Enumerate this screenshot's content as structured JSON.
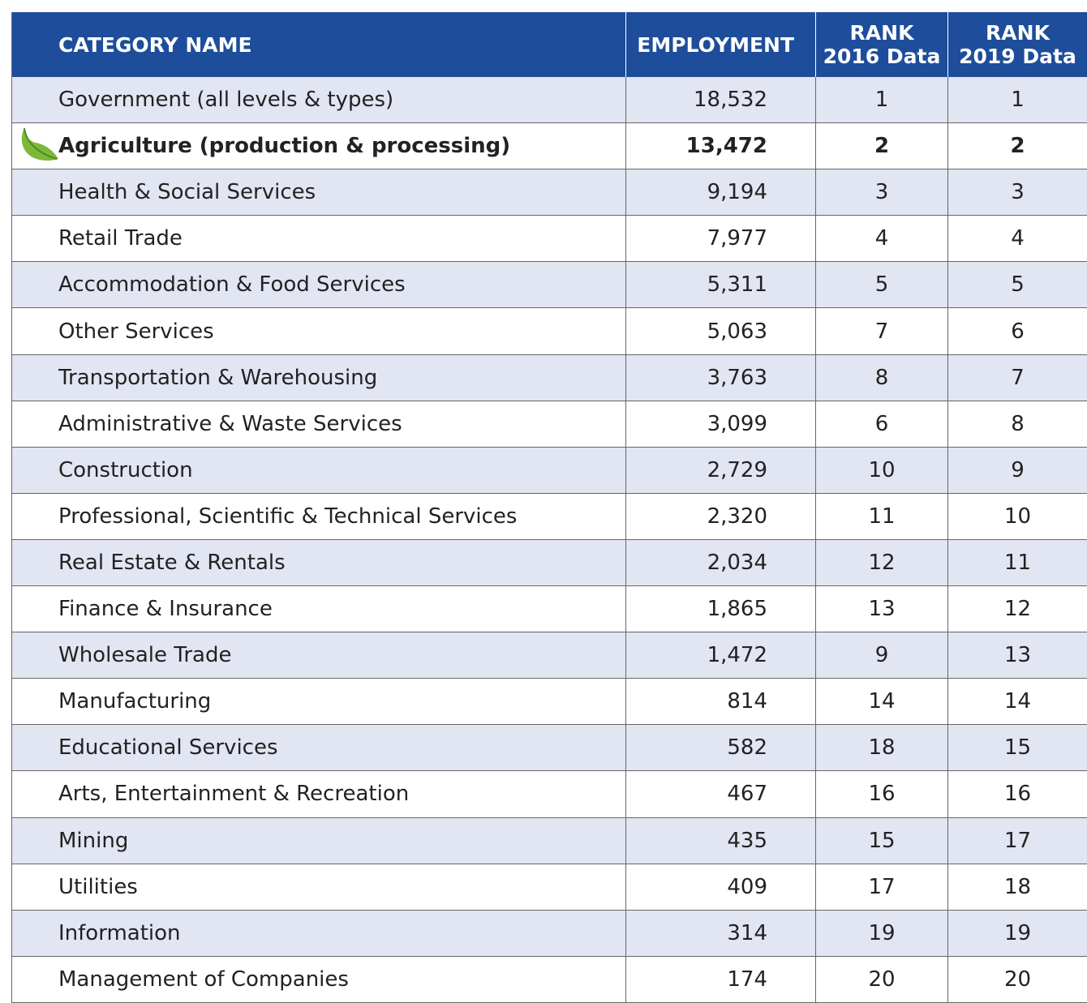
{
  "header": {
    "category": "CATEGORY NAME",
    "employment": "EMPLOYMENT",
    "rank2016": [
      "RANK",
      "2016 Data"
    ],
    "rank2019": [
      "RANK",
      "2019 Data"
    ]
  },
  "rows": [
    {
      "name": "Government (all levels & types)",
      "employment": "18,532",
      "rank2016": "1",
      "rank2019": "1"
    },
    {
      "name": "Agriculture (production & processing)",
      "employment": "13,472",
      "rank2016": "2",
      "rank2019": "2",
      "bold": true
    },
    {
      "name": "Health & Social Services",
      "employment": "9,194",
      "rank2016": "3",
      "rank2019": "3"
    },
    {
      "name": "Retail Trade",
      "employment": "7,977",
      "rank2016": "4",
      "rank2019": "4"
    },
    {
      "name": "Accommodation & Food Services",
      "employment": "5,311",
      "rank2016": "5",
      "rank2019": "5"
    },
    {
      "name": "Other Services",
      "employment": "5,063",
      "rank2016": "7",
      "rank2019": "6"
    },
    {
      "name": "Transportation & Warehousing",
      "employment": "3,763",
      "rank2016": "8",
      "rank2019": "7"
    },
    {
      "name": "Administrative & Waste Services",
      "employment": "3,099",
      "rank2016": "6",
      "rank2019": "8"
    },
    {
      "name": "Construction",
      "employment": "2,729",
      "rank2016": "10",
      "rank2019": "9"
    },
    {
      "name": "Professional, Scientific & Technical Services",
      "employment": "2,320",
      "rank2016": "11",
      "rank2019": "10"
    },
    {
      "name": "Real Estate & Rentals",
      "employment": "2,034",
      "rank2016": "12",
      "rank2019": "11"
    },
    {
      "name": "Finance & Insurance",
      "employment": "1,865",
      "rank2016": "13",
      "rank2019": "12"
    },
    {
      "name": "Wholesale Trade",
      "employment": "1,472",
      "rank2016": "9",
      "rank2019": "13"
    },
    {
      "name": "Manufacturing",
      "employment": "814",
      "rank2016": "14",
      "rank2019": "14"
    },
    {
      "name": "Educational Services",
      "employment": "582",
      "rank2016": "18",
      "rank2019": "15"
    },
    {
      "name": "Arts, Entertainment & Recreation",
      "employment": "467",
      "rank2016": "16",
      "rank2019": "16"
    },
    {
      "name": "Mining",
      "employment": "435",
      "rank2016": "15",
      "rank2019": "17"
    },
    {
      "name": "Utilities",
      "employment": "409",
      "rank2016": "17",
      "rank2019": "18"
    },
    {
      "name": "Information",
      "employment": "314",
      "rank2016": "19",
      "rank2019": "19"
    },
    {
      "name": "Management of Companies",
      "employment": "174",
      "rank2016": "20",
      "rank2019": "20"
    }
  ]
}
